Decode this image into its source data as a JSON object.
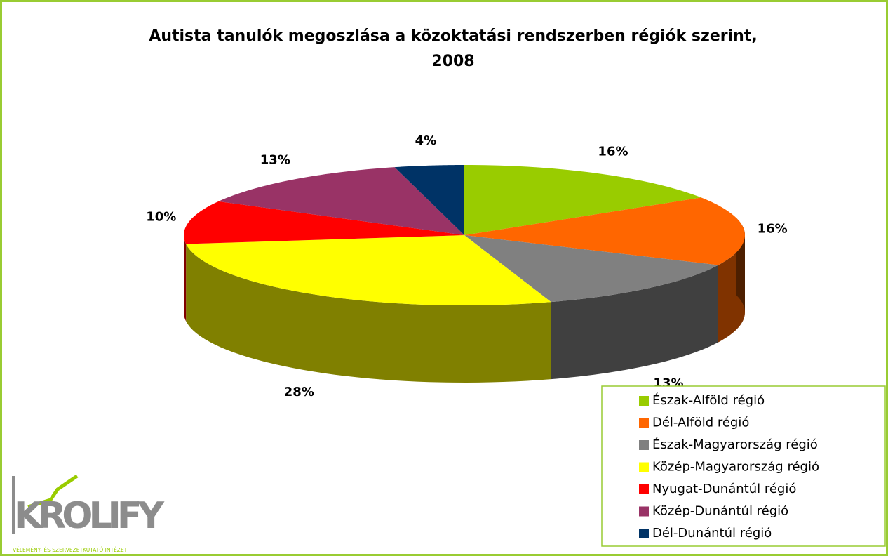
{
  "chart_data": {
    "type": "pie3d",
    "title": [
      "Autista tanulók megoszlása a közoktatási rendszerben régiók szerint,",
      "2008"
    ],
    "categories": [
      "Észak-Alföld régió",
      "Dél-Alföld régió",
      "Észak-Magyarország régió",
      "Közép-Magyarország régió",
      "Nyugat-Dunántúl régió",
      "Közép-Dunántúl régió",
      "Dél-Dunántúl régió"
    ],
    "values": [
      16,
      16,
      13,
      28,
      10,
      13,
      4
    ],
    "value_labels": [
      "16%",
      "16%",
      "13%",
      "28%",
      "10%",
      "13%",
      "4%"
    ],
    "colors": [
      "#99cc00",
      "#ff6600",
      "#808080",
      "#ffff00",
      "#ff0000",
      "#993366",
      "#003366"
    ],
    "legend": "bottom-right"
  },
  "logo": {
    "name": "KROLIFY",
    "tagline": "VÉLEMÉNY- ÉS SZERVEZETKUTATÓ INTÉZET"
  }
}
